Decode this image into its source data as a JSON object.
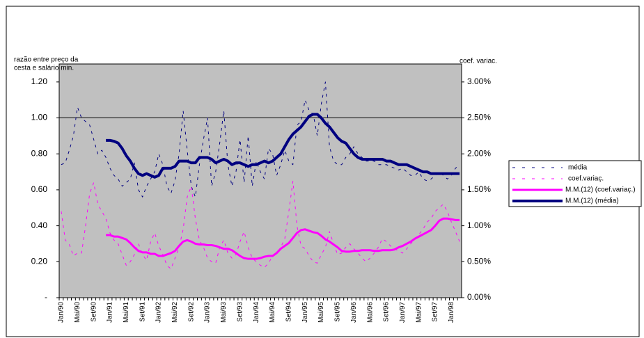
{
  "chart_data": {
    "type": "line",
    "ylabel": [
      "razão entre preço da",
      "cesta e salário min."
    ],
    "y2label": "coef. variac.",
    "categories": [
      "Jan/90",
      null,
      null,
      null,
      "Mai/90",
      null,
      null,
      null,
      "Set/90",
      null,
      null,
      null,
      "Jan/91",
      null,
      null,
      null,
      "Mai/91",
      null,
      null,
      null,
      "Set/91",
      null,
      null,
      null,
      "Jan/92",
      null,
      null,
      null,
      "Mai/92",
      null,
      null,
      null,
      "Set/92",
      null,
      null,
      null,
      "Jan/93",
      null,
      null,
      null,
      "Mai/93",
      null,
      null,
      null,
      "Set/93",
      null,
      null,
      null,
      "Jan/94",
      null,
      null,
      null,
      "Mai/94",
      null,
      null,
      null,
      "Set/94",
      null,
      null,
      null,
      "Jan/95",
      null,
      null,
      null,
      "Mai/95",
      null,
      null,
      null,
      "Set/95",
      null,
      null,
      null,
      "Jan/96",
      null,
      null,
      null,
      "Mai/96",
      null,
      null,
      null,
      "Set/96",
      null,
      null,
      null,
      "Jan/97",
      null,
      null,
      null,
      "Mai/97",
      null,
      null,
      null,
      "Set/97",
      null,
      null,
      null,
      "Jan/98",
      null,
      null
    ],
    "ylim": [
      0,
      1.3
    ],
    "yticks": [
      {
        "value": 0,
        "label": "-"
      },
      {
        "value": 0.2,
        "label": "0.20"
      },
      {
        "value": 0.4,
        "label": "0.40"
      },
      {
        "value": 0.6,
        "label": "0.60"
      },
      {
        "value": 0.8,
        "label": "0.80"
      },
      {
        "value": 1,
        "label": "1.00"
      },
      {
        "value": 1.2,
        "label": "1.20"
      }
    ],
    "y2lim": [
      0,
      3.25
    ],
    "y2ticks": [
      {
        "value": 0,
        "label": "0.00%"
      },
      {
        "value": 0.5,
        "label": "0.50%"
      },
      {
        "value": 1,
        "label": "1.00%"
      },
      {
        "value": 1.5,
        "label": "1.50%"
      },
      {
        "value": 2,
        "label": "2.00%"
      },
      {
        "value": 2.5,
        "label": "2.50%"
      },
      {
        "value": 3,
        "label": "3.00%"
      }
    ],
    "reference_line": 1,
    "legend": "right",
    "series": [
      {
        "name": "média",
        "color": "#000080",
        "style": "dashed",
        "values": [
          0.74,
          0.75,
          0.82,
          0.9,
          1.06,
          1.0,
          0.98,
          0.96,
          0.88,
          0.8,
          0.82,
          0.78,
          0.72,
          0.68,
          0.66,
          0.62,
          0.64,
          0.66,
          0.75,
          0.6,
          0.56,
          0.62,
          0.66,
          0.7,
          0.8,
          0.74,
          0.62,
          0.58,
          0.65,
          0.8,
          1.04,
          0.82,
          0.62,
          0.56,
          0.74,
          0.88,
          1.0,
          0.62,
          0.7,
          0.86,
          1.04,
          0.74,
          0.62,
          0.7,
          0.88,
          0.64,
          0.9,
          0.62,
          0.76,
          0.7,
          0.66,
          0.83,
          0.8,
          0.68,
          0.74,
          0.82,
          0.76,
          0.74,
          0.96,
          0.98,
          1.1,
          1.04,
          1.02,
          0.9,
          1.08,
          1.2,
          0.84,
          0.76,
          0.74,
          0.74,
          0.78,
          0.8,
          0.84,
          0.8,
          0.78,
          0.76,
          0.76,
          0.76,
          0.74,
          0.74,
          0.74,
          0.73,
          0.72,
          0.71,
          0.72,
          0.7,
          0.68,
          0.68,
          0.7,
          0.66,
          0.65,
          0.66,
          0.68,
          0.7,
          0.68,
          0.66,
          0.68,
          0.72,
          0.74
        ]
      },
      {
        "name": "coef.variaç.",
        "color": "#ff00ff",
        "style": "dashed",
        "axis": "y2",
        "values": [
          1.2,
          0.8,
          0.74,
          0.58,
          0.62,
          0.62,
          1.0,
          1.45,
          1.6,
          1.3,
          1.2,
          1.1,
          0.9,
          0.8,
          0.75,
          0.6,
          0.45,
          0.5,
          0.6,
          0.75,
          0.6,
          0.52,
          0.78,
          0.9,
          0.72,
          0.6,
          0.45,
          0.4,
          0.55,
          0.7,
          0.95,
          1.4,
          1.55,
          1.1,
          0.8,
          0.7,
          0.55,
          0.5,
          0.48,
          0.7,
          0.8,
          0.62,
          0.55,
          0.6,
          0.78,
          0.92,
          0.7,
          0.55,
          0.5,
          0.45,
          0.42,
          0.48,
          0.58,
          0.62,
          0.7,
          0.82,
          1.2,
          1.62,
          1.0,
          0.72,
          0.68,
          0.58,
          0.5,
          0.48,
          0.6,
          0.7,
          0.92,
          0.75,
          0.6,
          0.62,
          0.7,
          0.75,
          0.68,
          0.62,
          0.55,
          0.5,
          0.55,
          0.62,
          0.7,
          0.82,
          0.78,
          0.72,
          0.68,
          0.65,
          0.62,
          0.68,
          0.75,
          0.82,
          0.88,
          0.95,
          1.05,
          1.1,
          1.2,
          1.25,
          1.3,
          1.2,
          1.05,
          0.92,
          0.78
        ]
      },
      {
        "name": "M.M.(12) (coef.variaç.)",
        "color": "#ff00ff",
        "style": "thick",
        "axis": "y2",
        "values": [
          null,
          null,
          null,
          null,
          null,
          null,
          null,
          null,
          null,
          null,
          null,
          0.87,
          0.87,
          0.85,
          0.85,
          0.83,
          0.81,
          0.76,
          0.7,
          0.65,
          0.63,
          0.63,
          0.61,
          0.61,
          0.58,
          0.58,
          0.6,
          0.62,
          0.65,
          0.72,
          0.78,
          0.8,
          0.78,
          0.75,
          0.74,
          0.74,
          0.73,
          0.73,
          0.72,
          0.7,
          0.68,
          0.68,
          0.66,
          0.62,
          0.58,
          0.55,
          0.54,
          0.54,
          0.54,
          0.55,
          0.57,
          0.58,
          0.58,
          0.62,
          0.68,
          0.72,
          0.76,
          0.83,
          0.9,
          0.94,
          0.95,
          0.93,
          0.91,
          0.9,
          0.86,
          0.81,
          0.78,
          0.74,
          0.7,
          0.65,
          0.64,
          0.64,
          0.65,
          0.65,
          0.66,
          0.66,
          0.66,
          0.65,
          0.65,
          0.66,
          0.66,
          0.66,
          0.67,
          0.7,
          0.72,
          0.75,
          0.78,
          0.82,
          0.85,
          0.88,
          0.91,
          0.94,
          1.0,
          1.07,
          1.1,
          1.1,
          1.09,
          1.08,
          1.08
        ]
      },
      {
        "name": "M.M.(12) (média)",
        "color": "#000080",
        "style": "thick",
        "values": [
          null,
          null,
          null,
          null,
          null,
          null,
          null,
          null,
          null,
          null,
          null,
          0.875,
          0.875,
          0.87,
          0.86,
          0.83,
          0.79,
          0.76,
          0.72,
          0.69,
          0.68,
          0.69,
          0.68,
          0.67,
          0.68,
          0.72,
          0.72,
          0.72,
          0.73,
          0.76,
          0.76,
          0.76,
          0.75,
          0.75,
          0.78,
          0.78,
          0.78,
          0.77,
          0.75,
          0.76,
          0.77,
          0.76,
          0.74,
          0.75,
          0.75,
          0.74,
          0.73,
          0.74,
          0.74,
          0.75,
          0.76,
          0.75,
          0.76,
          0.78,
          0.8,
          0.84,
          0.88,
          0.91,
          0.93,
          0.95,
          0.98,
          1.01,
          1.02,
          1.02,
          1.0,
          0.97,
          0.95,
          0.92,
          0.89,
          0.87,
          0.86,
          0.83,
          0.8,
          0.78,
          0.77,
          0.77,
          0.77,
          0.77,
          0.77,
          0.77,
          0.76,
          0.76,
          0.75,
          0.74,
          0.74,
          0.74,
          0.73,
          0.72,
          0.71,
          0.7,
          0.7,
          0.69,
          0.69,
          0.69,
          0.69,
          0.69,
          0.69,
          0.69,
          0.69
        ]
      }
    ]
  }
}
